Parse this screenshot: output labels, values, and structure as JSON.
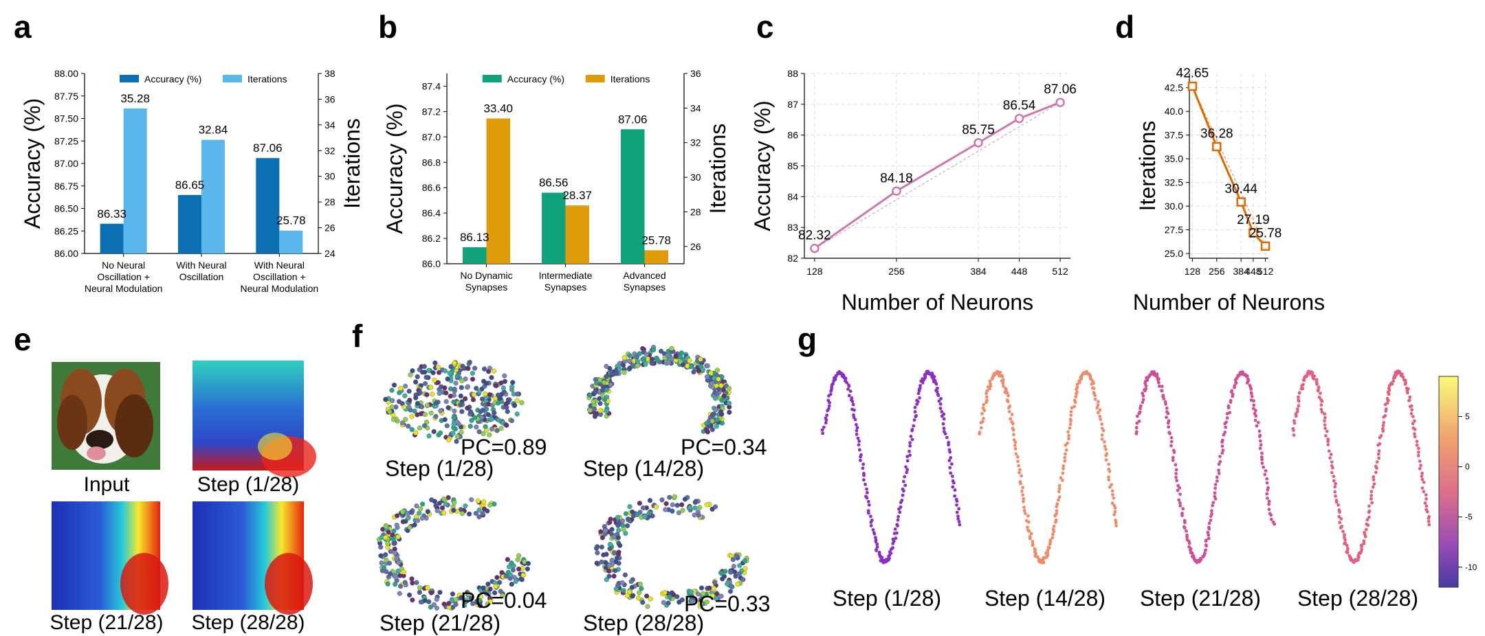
{
  "panels": {
    "a": "a",
    "b": "b",
    "c": "c",
    "d": "d",
    "e": "e",
    "f": "f",
    "g": "g"
  },
  "colors": {
    "dark_blue": "#0a6fb3",
    "light_blue": "#5ab7eb",
    "green": "#10a27a",
    "orange": "#e09b0b",
    "pink": "#cc77ad",
    "dark_orange": "#e06800",
    "grid": "#dcdcdc",
    "axis": "#000000"
  },
  "chart_data": [
    {
      "panel": "a",
      "type": "bar",
      "categories": [
        "No Neural\nOscillation +\nNeural Modulation",
        "With Neural\nOscillation",
        "With Neural\nOscillation +\nNeural Modulation"
      ],
      "series": [
        {
          "name": "Accuracy (%)",
          "axis": "left",
          "values": [
            86.33,
            86.65,
            87.06
          ],
          "labels": [
            "86.33",
            "86.65",
            "87.06"
          ]
        },
        {
          "name": "Iterations",
          "axis": "right",
          "values": [
            35.28,
            32.84,
            25.78
          ],
          "labels": [
            "35.28",
            "32.84",
            "25.78"
          ]
        }
      ],
      "ylabel": "Accuracy (%)",
      "y2label": "Iterations",
      "ylim": [
        86.0,
        88.0
      ],
      "yticks": [
        "86.00",
        "86.25",
        "86.50",
        "86.75",
        "87.00",
        "87.25",
        "87.50",
        "87.75",
        "88.00"
      ],
      "y2lim": [
        24,
        38
      ],
      "y2ticks": [
        "24",
        "26",
        "28",
        "30",
        "32",
        "34",
        "36",
        "38"
      ],
      "legend": "top-center"
    },
    {
      "panel": "b",
      "type": "bar",
      "categories": [
        "No Dynamic\nSynapses",
        "Intermediate\nSynapses",
        "Advanced\nSynapses"
      ],
      "series": [
        {
          "name": "Accuracy (%)",
          "axis": "left",
          "values": [
            86.13,
            86.56,
            87.06
          ],
          "labels": [
            "86.13",
            "86.56",
            "87.06"
          ]
        },
        {
          "name": "Iterations",
          "axis": "right",
          "values": [
            33.4,
            28.37,
            25.78
          ],
          "labels": [
            "33.40",
            "28.37",
            "25.78"
          ]
        }
      ],
      "ylabel": "Accuracy (%)",
      "y2label": "Iterations",
      "ylim": [
        86.0,
        87.5
      ],
      "yticks": [
        "86.0",
        "86.2",
        "86.4",
        "86.6",
        "86.8",
        "87.0",
        "87.2",
        "87.4"
      ],
      "y2lim": [
        25,
        36
      ],
      "y2ticks": [
        "26",
        "28",
        "30",
        "32",
        "34",
        "36"
      ],
      "legend": "top-center"
    },
    {
      "panel": "c",
      "type": "line",
      "x": [
        128,
        256,
        384,
        448,
        512
      ],
      "xticks": [
        "128",
        "256",
        "384",
        "448",
        "512"
      ],
      "values": [
        82.32,
        84.18,
        85.75,
        86.54,
        87.06
      ],
      "labels": [
        "82.32",
        "84.18",
        "85.75",
        "86.54",
        "87.06"
      ],
      "xlabel": "Number of Neurons",
      "ylabel": "Accuracy (%)",
      "ylim": [
        82,
        88
      ],
      "yticks": [
        "82",
        "83",
        "84",
        "85",
        "86",
        "87",
        "88"
      ],
      "grid": true
    },
    {
      "panel": "d",
      "type": "line",
      "x": [
        128,
        256,
        384,
        448,
        512
      ],
      "xticks": [
        "128",
        "256",
        "384",
        "448",
        "512"
      ],
      "values": [
        42.65,
        36.28,
        30.44,
        27.19,
        25.78
      ],
      "labels": [
        "42.65",
        "36.28",
        "30.44",
        "27.19",
        "25.78"
      ],
      "xlabel": "Number of Neurons",
      "ylabel": "Iterations",
      "ylim": [
        24.5,
        44
      ],
      "yticks": [
        "25.0",
        "27.5",
        "30.0",
        "32.5",
        "35.0",
        "37.5",
        "40.0",
        "42.5"
      ],
      "grid": true
    }
  ],
  "panel_e": {
    "captions": [
      "Input",
      "Step (1/28)",
      "Step (21/28)",
      "Step (28/28)"
    ]
  },
  "panel_f": {
    "items": [
      {
        "step": "Step (1/28)",
        "pc": "PC=0.89"
      },
      {
        "step": "Step (14/28)",
        "pc": "PC=0.34"
      },
      {
        "step": "Step (21/28)",
        "pc": "PC=0.04"
      },
      {
        "step": "Step (28/28)",
        "pc": "PC=0.33"
      }
    ]
  },
  "panel_g": {
    "steps": [
      "Step (1/28)",
      "Step (14/28)",
      "Step (21/28)",
      "Step (28/28)"
    ],
    "colorbar_ticks": [
      "5",
      "0",
      "-5",
      "-10"
    ]
  }
}
